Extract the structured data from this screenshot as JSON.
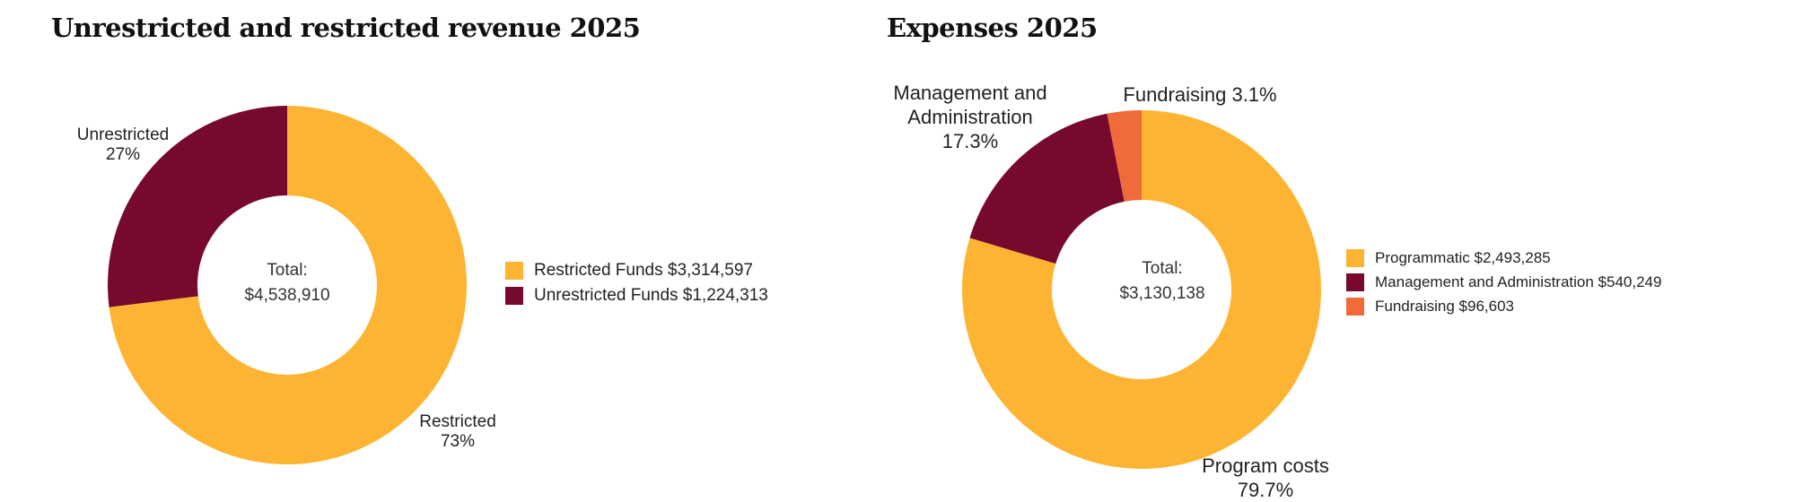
{
  "colors": {
    "gold": "#FDB432",
    "maroon": "#76092C",
    "orange": "#F06A3A"
  },
  "chart_data": [
    {
      "type": "pie",
      "title": "Unrestricted and restricted revenue 2025",
      "center_text": [
        "Total:",
        "$4,538,910"
      ],
      "categories": [
        "Restricted",
        "Unrestricted"
      ],
      "values": [
        3314597,
        1224313
      ],
      "percent_labels": [
        "73%",
        "27%"
      ],
      "legend": [
        "Restricted Funds $3,314,597",
        "Unrestricted Funds $1,224,313"
      ],
      "legend_position": "right"
    },
    {
      "type": "pie",
      "title": "Expenses 2025",
      "center_text": [
        "Total:",
        "$3,130,138"
      ],
      "categories": [
        "Program costs",
        "Management and Administration",
        "Fundraising"
      ],
      "values": [
        2493285,
        540249,
        96603
      ],
      "percent_labels": [
        "79.7%",
        "17.3%",
        "3.1%"
      ],
      "slice_labels": [
        "Program costs",
        "Management and Administration",
        "Fundraising 3.1%"
      ],
      "legend": [
        "Programmatic $2,493,285",
        "Management and Administration $540,249",
        "Fundraising $96,603"
      ],
      "legend_position": "right"
    }
  ]
}
